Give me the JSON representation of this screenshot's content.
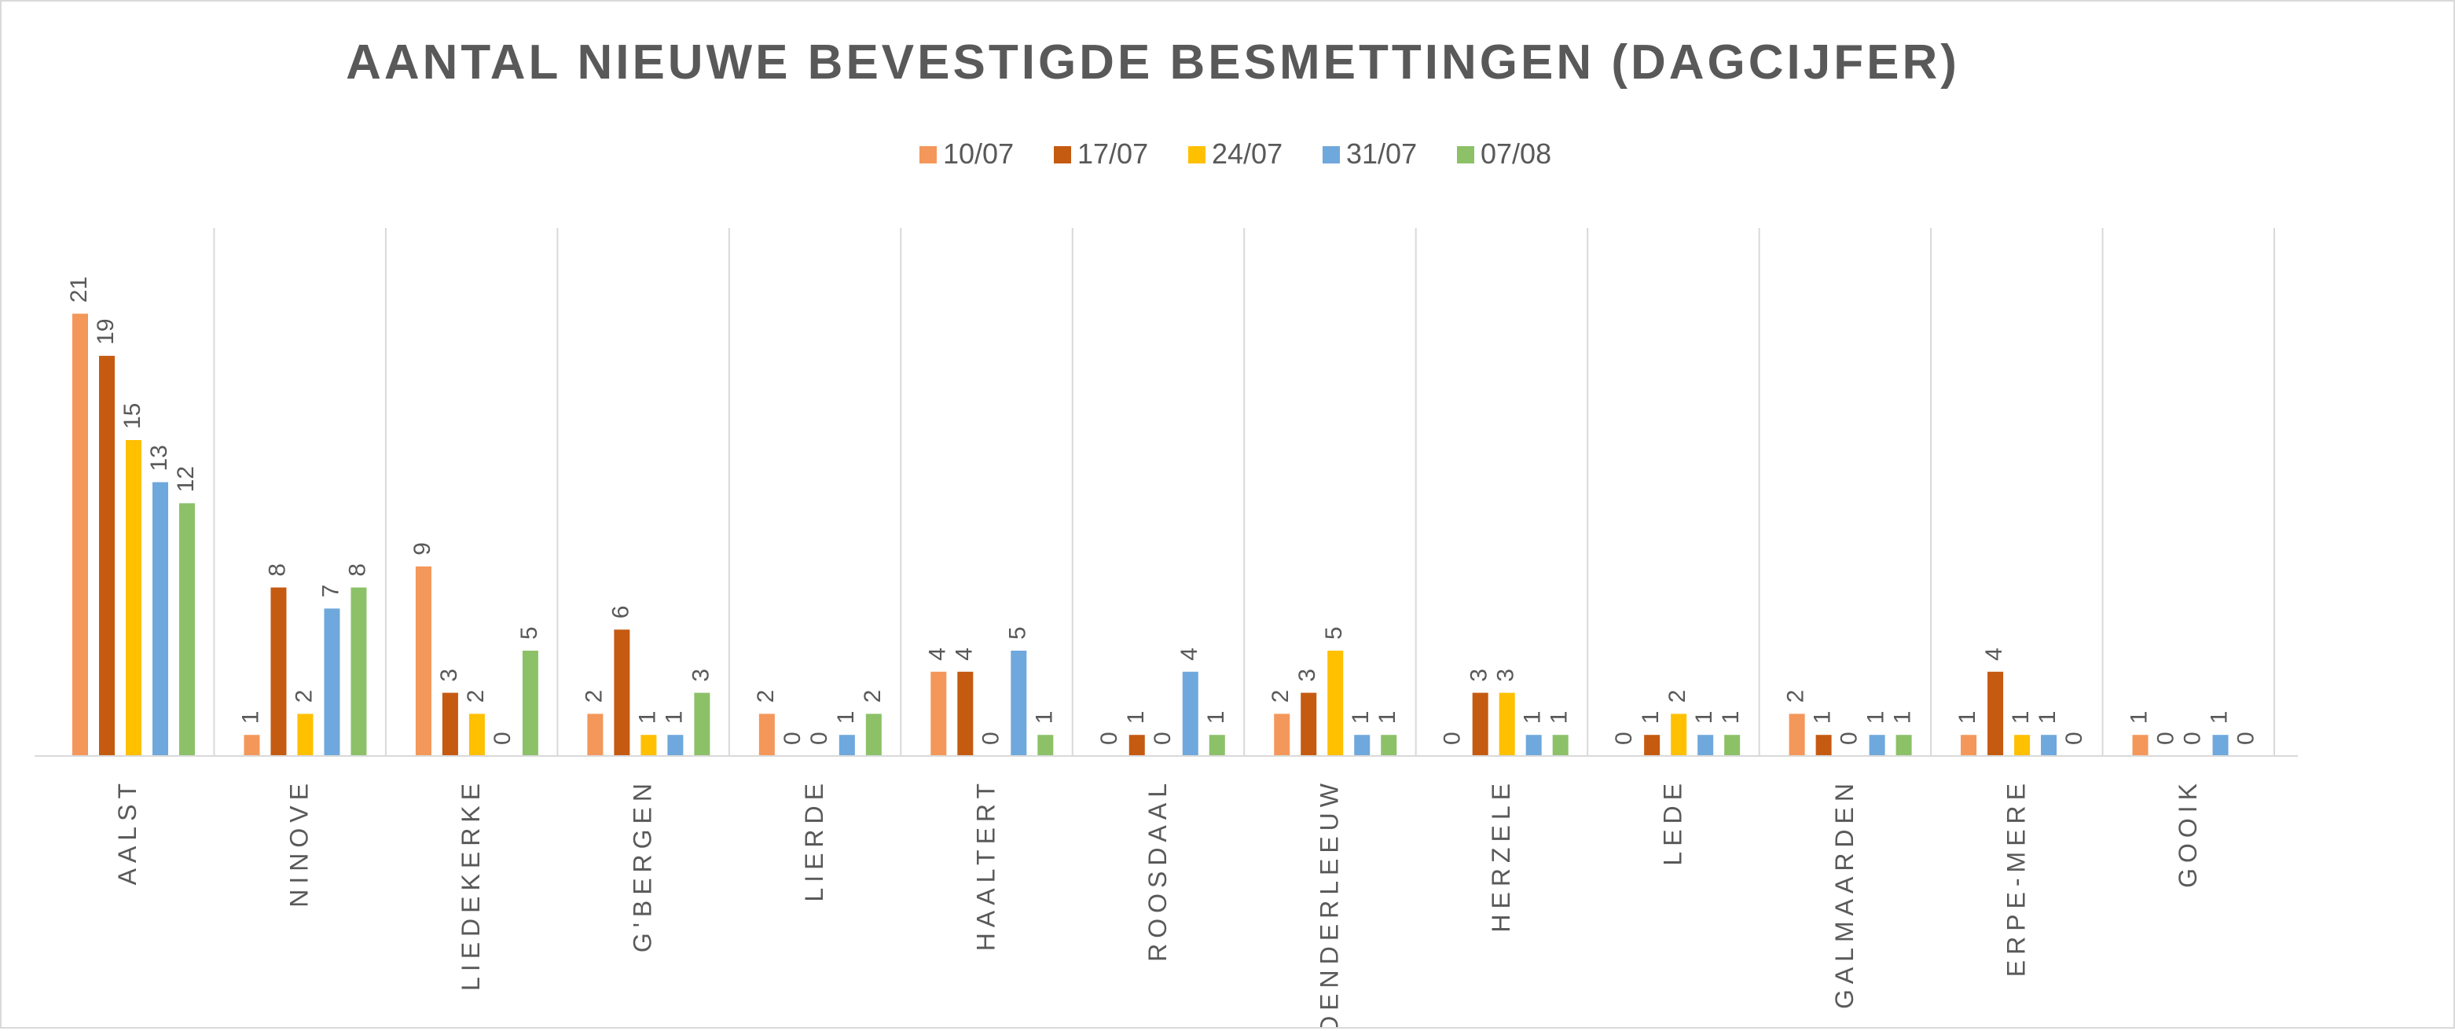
{
  "chart_data": {
    "type": "bar",
    "title": "AANTAL NIEUWE BEVESTIGDE BESMETTINGEN (DAGCIJFER)",
    "xlabel": "",
    "ylabel": "",
    "ylim": [
      0,
      25
    ],
    "grid": "vertical separators",
    "legend_position": "top",
    "categories": [
      "AALST",
      "NINOVE",
      "LIEDEKERKE",
      "G'BERGEN",
      "LIERDE",
      "HAALTERT",
      "ROOSDAAL",
      "DENDERLEEUW",
      "HERZELE",
      "LEDE",
      "GALMAARDEN",
      "ERPE-MERE",
      "GOOIK"
    ],
    "series": [
      {
        "name": "10/07",
        "color": "#F4975A",
        "values": [
          21,
          1,
          9,
          2,
          2,
          4,
          0,
          2,
          0,
          0,
          2,
          1,
          1
        ]
      },
      {
        "name": "17/07",
        "color": "#C55A11",
        "values": [
          19,
          8,
          3,
          6,
          0,
          4,
          1,
          3,
          3,
          1,
          1,
          4,
          0
        ]
      },
      {
        "name": "24/07",
        "color": "#FFC000",
        "values": [
          15,
          2,
          2,
          1,
          0,
          0,
          0,
          5,
          3,
          2,
          0,
          1,
          0
        ]
      },
      {
        "name": "31/07",
        "color": "#6FA8DC",
        "values": [
          13,
          7,
          0,
          1,
          1,
          5,
          4,
          1,
          1,
          1,
          1,
          1,
          1
        ]
      },
      {
        "name": "07/08",
        "color": "#8CC168",
        "values": [
          12,
          8,
          5,
          3,
          2,
          1,
          1,
          1,
          1,
          1,
          1,
          0,
          0
        ]
      }
    ]
  }
}
